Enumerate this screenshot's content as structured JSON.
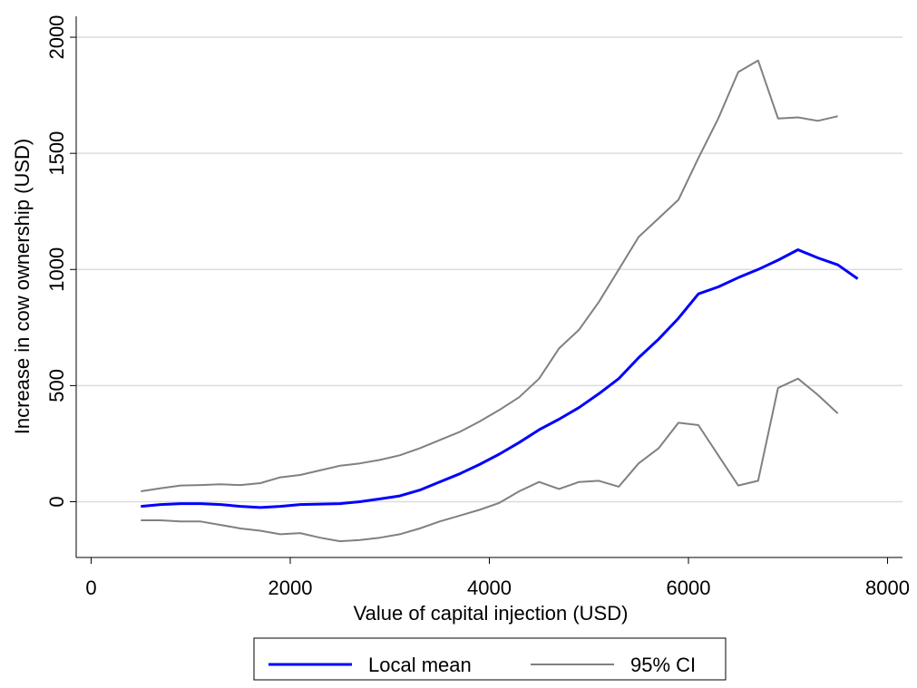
{
  "chart_data": {
    "type": "line",
    "xlabel": "Value of capital injection (USD)",
    "ylabel": "Increase in cow ownership (USD)",
    "x": [
      500,
      700,
      900,
      1100,
      1300,
      1500,
      1700,
      1900,
      2100,
      2300,
      2500,
      2700,
      2900,
      3100,
      3300,
      3500,
      3700,
      3900,
      4100,
      4300,
      4500,
      4700,
      4900,
      5100,
      5300,
      5500,
      5700,
      5900,
      6100,
      6300,
      6500,
      6700,
      6900,
      7100,
      7300,
      7500,
      7700
    ],
    "series": [
      {
        "name": "Local mean",
        "color": "#0000ff",
        "values": [
          -20,
          -12,
          -8,
          -8,
          -12,
          -20,
          -25,
          -20,
          -12,
          -10,
          -8,
          0,
          12,
          25,
          50,
          85,
          120,
          160,
          205,
          255,
          310,
          355,
          405,
          465,
          530,
          620,
          700,
          790,
          895,
          925,
          965,
          1000,
          1040,
          1085,
          1050,
          1020,
          960
        ]
      },
      {
        "name": "95% CI",
        "color": "#808080",
        "upper": [
          45,
          58,
          70,
          72,
          75,
          72,
          80,
          105,
          115,
          135,
          155,
          165,
          180,
          200,
          230,
          265,
          300,
          345,
          395,
          450,
          530,
          660,
          740,
          860,
          1000,
          1140,
          1220,
          1300,
          1480,
          1650,
          1850,
          1900,
          1650,
          1655,
          1640,
          1660,
          null
        ],
        "lower": [
          -80,
          -80,
          -85,
          -85,
          -100,
          -115,
          -125,
          -140,
          -135,
          -155,
          -170,
          -165,
          -155,
          -140,
          -115,
          -85,
          -60,
          -35,
          -5,
          45,
          85,
          55,
          85,
          90,
          65,
          165,
          230,
          340,
          330,
          200,
          70,
          90,
          490,
          530,
          460,
          380,
          null
        ]
      }
    ],
    "xlim": [
      -150,
      8150
    ],
    "xticks": [
      0,
      2000,
      4000,
      6000,
      8000
    ],
    "ylim": [
      -240,
      2090
    ],
    "yticks": [
      0,
      500,
      1000,
      1500,
      2000
    ],
    "grid": true,
    "legend": "bottom"
  }
}
